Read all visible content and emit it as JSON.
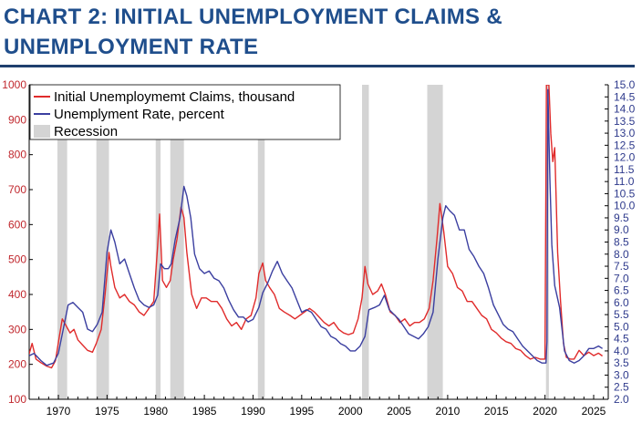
{
  "header": {
    "line1": "CHART 2: INITIAL UNEMPLOYMENT CLAIMS &",
    "line2": "UNEMPLOYMENT RATE"
  },
  "colors": {
    "claims": "#e02b2b",
    "rate": "#3b3fa0",
    "recession": "#d4d4d4",
    "title": "#1f4e8c"
  },
  "chart_data": {
    "type": "line",
    "title": "CHART 2: INITIAL UNEMPLOYMENT CLAIMS & UNEMPLOYMENT RATE",
    "xlabel": "",
    "ylabel": "",
    "xlim": [
      1967,
      2026.5
    ],
    "y_left_lim": [
      100,
      1000
    ],
    "y_right_lim": [
      2.0,
      15.0
    ],
    "x_ticks": [
      "1970",
      "1975",
      "1980",
      "1985",
      "1990",
      "1995",
      "2000",
      "2005",
      "2010",
      "2015",
      "2020",
      "2025"
    ],
    "y_left_ticks": [
      "100",
      "200",
      "300",
      "400",
      "500",
      "600",
      "700",
      "800",
      "900",
      "1000"
    ],
    "y_right_ticks": [
      "2.0",
      "2.5",
      "3.0",
      "3.5",
      "4.0",
      "4.5",
      "5.0",
      "5.5",
      "6.0",
      "6.5",
      "7.0",
      "7.5",
      "8.0",
      "8.5",
      "9.0",
      "9.5",
      "10.0",
      "10.5",
      "11.0",
      "11.5",
      "12.0",
      "12.5",
      "13.0",
      "13.5",
      "14.0",
      "14.5",
      "15.0"
    ],
    "legend": [
      {
        "label": "Initial Unemploymemt Claims, thousand",
        "kind": "line",
        "color": "#e02b2b"
      },
      {
        "label": "Unemplyment Rate, percent",
        "kind": "line",
        "color": "#3b3fa0"
      },
      {
        "label": "Recession",
        "kind": "box",
        "color": "#d4d4d4"
      }
    ],
    "legend_position": "top-left",
    "recessions": [
      [
        1969.9,
        1970.9
      ],
      [
        1973.9,
        1975.2
      ],
      [
        1980.0,
        1980.5
      ],
      [
        1981.5,
        1982.9
      ],
      [
        1990.5,
        1991.2
      ],
      [
        2001.2,
        2001.9
      ],
      [
        2007.9,
        2009.5
      ],
      [
        2020.1,
        2020.4
      ]
    ],
    "series": [
      {
        "name": "Initial Unemploymemt Claims, thousand",
        "axis": "left",
        "points": [
          [
            1967,
            230
          ],
          [
            1967.3,
            260
          ],
          [
            1967.7,
            215
          ],
          [
            1968.2,
            205
          ],
          [
            1968.8,
            195
          ],
          [
            1969.3,
            190
          ],
          [
            1969.7,
            210
          ],
          [
            1970.1,
            280
          ],
          [
            1970.4,
            330
          ],
          [
            1970.8,
            310
          ],
          [
            1971.2,
            290
          ],
          [
            1971.6,
            300
          ],
          [
            1972.0,
            270
          ],
          [
            1972.5,
            255
          ],
          [
            1973.0,
            240
          ],
          [
            1973.5,
            235
          ],
          [
            1973.9,
            260
          ],
          [
            1974.4,
            300
          ],
          [
            1974.8,
            400
          ],
          [
            1975.2,
            520
          ],
          [
            1975.4,
            480
          ],
          [
            1975.8,
            420
          ],
          [
            1976.3,
            390
          ],
          [
            1976.8,
            400
          ],
          [
            1977.3,
            380
          ],
          [
            1977.8,
            370
          ],
          [
            1978.3,
            350
          ],
          [
            1978.8,
            340
          ],
          [
            1979.3,
            360
          ],
          [
            1979.8,
            380
          ],
          [
            1980.2,
            540
          ],
          [
            1980.4,
            630
          ],
          [
            1980.7,
            440
          ],
          [
            1981.1,
            420
          ],
          [
            1981.5,
            440
          ],
          [
            1981.8,
            500
          ],
          [
            1982.2,
            560
          ],
          [
            1982.6,
            650
          ],
          [
            1982.9,
            620
          ],
          [
            1983.2,
            520
          ],
          [
            1983.7,
            400
          ],
          [
            1984.2,
            360
          ],
          [
            1984.7,
            390
          ],
          [
            1985.2,
            390
          ],
          [
            1985.7,
            380
          ],
          [
            1986.3,
            380
          ],
          [
            1986.8,
            360
          ],
          [
            1987.3,
            330
          ],
          [
            1987.8,
            310
          ],
          [
            1988.3,
            320
          ],
          [
            1988.8,
            300
          ],
          [
            1989.3,
            330
          ],
          [
            1989.8,
            340
          ],
          [
            1990.3,
            390
          ],
          [
            1990.6,
            460
          ],
          [
            1991.0,
            490
          ],
          [
            1991.3,
            440
          ],
          [
            1991.7,
            420
          ],
          [
            1992.2,
            400
          ],
          [
            1992.7,
            360
          ],
          [
            1993.2,
            350
          ],
          [
            1993.8,
            340
          ],
          [
            1994.3,
            330
          ],
          [
            1994.8,
            340
          ],
          [
            1995.3,
            350
          ],
          [
            1995.8,
            360
          ],
          [
            1996.3,
            350
          ],
          [
            1996.8,
            335
          ],
          [
            1997.3,
            320
          ],
          [
            1997.8,
            310
          ],
          [
            1998.3,
            320
          ],
          [
            1998.8,
            300
          ],
          [
            1999.3,
            290
          ],
          [
            1999.8,
            285
          ],
          [
            2000.3,
            290
          ],
          [
            2000.8,
            330
          ],
          [
            2001.2,
            390
          ],
          [
            2001.5,
            480
          ],
          [
            2001.8,
            430
          ],
          [
            2002.3,
            400
          ],
          [
            2002.8,
            410
          ],
          [
            2003.2,
            430
          ],
          [
            2003.6,
            400
          ],
          [
            2004.1,
            350
          ],
          [
            2004.6,
            340
          ],
          [
            2005.1,
            320
          ],
          [
            2005.6,
            330
          ],
          [
            2006.1,
            310
          ],
          [
            2006.6,
            320
          ],
          [
            2007.1,
            320
          ],
          [
            2007.6,
            330
          ],
          [
            2008.1,
            360
          ],
          [
            2008.5,
            440
          ],
          [
            2008.9,
            560
          ],
          [
            2009.2,
            660
          ],
          [
            2009.6,
            580
          ],
          [
            2010.0,
            480
          ],
          [
            2010.5,
            460
          ],
          [
            2011.0,
            420
          ],
          [
            2011.5,
            410
          ],
          [
            2012.0,
            380
          ],
          [
            2012.5,
            380
          ],
          [
            2013.0,
            360
          ],
          [
            2013.5,
            340
          ],
          [
            2014.0,
            330
          ],
          [
            2014.5,
            300
          ],
          [
            2015.0,
            290
          ],
          [
            2015.5,
            275
          ],
          [
            2016.0,
            265
          ],
          [
            2016.5,
            260
          ],
          [
            2017.0,
            245
          ],
          [
            2017.5,
            240
          ],
          [
            2018.0,
            225
          ],
          [
            2018.5,
            215
          ],
          [
            2019.0,
            220
          ],
          [
            2019.5,
            215
          ],
          [
            2020.0,
            215
          ],
          [
            2020.15,
            1000
          ],
          [
            2020.4,
            1000
          ],
          [
            2020.6,
            860
          ],
          [
            2020.8,
            780
          ],
          [
            2021.0,
            820
          ],
          [
            2021.3,
            520
          ],
          [
            2021.6,
            380
          ],
          [
            2021.9,
            260
          ],
          [
            2022.2,
            220
          ],
          [
            2022.6,
            215
          ],
          [
            2023.0,
            215
          ],
          [
            2023.5,
            240
          ],
          [
            2024.0,
            225
          ],
          [
            2024.5,
            235
          ],
          [
            2025.0,
            225
          ],
          [
            2025.5,
            232
          ],
          [
            2025.9,
            224
          ]
        ]
      },
      {
        "name": "Unemplyment Rate, percent",
        "axis": "right",
        "points": [
          [
            1967,
            3.8
          ],
          [
            1967.5,
            3.9
          ],
          [
            1968.2,
            3.6
          ],
          [
            1968.8,
            3.4
          ],
          [
            1969.5,
            3.5
          ],
          [
            1970.0,
            3.9
          ],
          [
            1970.5,
            4.9
          ],
          [
            1971.0,
            5.9
          ],
          [
            1971.5,
            6.0
          ],
          [
            1972.0,
            5.8
          ],
          [
            1972.5,
            5.6
          ],
          [
            1973.0,
            4.9
          ],
          [
            1973.5,
            4.8
          ],
          [
            1974.0,
            5.1
          ],
          [
            1974.5,
            5.6
          ],
          [
            1975.0,
            8.1
          ],
          [
            1975.4,
            9.0
          ],
          [
            1975.8,
            8.5
          ],
          [
            1976.3,
            7.6
          ],
          [
            1976.8,
            7.8
          ],
          [
            1977.3,
            7.2
          ],
          [
            1977.8,
            6.6
          ],
          [
            1978.3,
            6.1
          ],
          [
            1978.8,
            5.9
          ],
          [
            1979.3,
            5.8
          ],
          [
            1979.8,
            5.9
          ],
          [
            1980.2,
            6.3
          ],
          [
            1980.5,
            7.6
          ],
          [
            1980.9,
            7.4
          ],
          [
            1981.3,
            7.4
          ],
          [
            1981.6,
            7.6
          ],
          [
            1982.0,
            8.6
          ],
          [
            1982.5,
            9.5
          ],
          [
            1982.9,
            10.8
          ],
          [
            1983.2,
            10.4
          ],
          [
            1983.6,
            9.5
          ],
          [
            1984.0,
            8.0
          ],
          [
            1984.5,
            7.4
          ],
          [
            1985.0,
            7.2
          ],
          [
            1985.5,
            7.3
          ],
          [
            1986.0,
            7.0
          ],
          [
            1986.5,
            6.9
          ],
          [
            1987.0,
            6.6
          ],
          [
            1987.5,
            6.1
          ],
          [
            1988.0,
            5.7
          ],
          [
            1988.5,
            5.4
          ],
          [
            1989.0,
            5.4
          ],
          [
            1989.5,
            5.2
          ],
          [
            1990.0,
            5.3
          ],
          [
            1990.6,
            5.8
          ],
          [
            1991.0,
            6.4
          ],
          [
            1991.5,
            6.8
          ],
          [
            1992.0,
            7.3
          ],
          [
            1992.5,
            7.7
          ],
          [
            1993.0,
            7.2
          ],
          [
            1993.5,
            6.9
          ],
          [
            1994.0,
            6.6
          ],
          [
            1994.5,
            6.1
          ],
          [
            1995.0,
            5.6
          ],
          [
            1995.5,
            5.7
          ],
          [
            1996.0,
            5.6
          ],
          [
            1996.5,
            5.3
          ],
          [
            1997.0,
            5.0
          ],
          [
            1997.5,
            4.9
          ],
          [
            1998.0,
            4.6
          ],
          [
            1998.5,
            4.5
          ],
          [
            1999.0,
            4.3
          ],
          [
            1999.5,
            4.2
          ],
          [
            2000.0,
            4.0
          ],
          [
            2000.5,
            4.0
          ],
          [
            2001.0,
            4.2
          ],
          [
            2001.5,
            4.6
          ],
          [
            2001.9,
            5.7
          ],
          [
            2002.5,
            5.8
          ],
          [
            2003.0,
            5.9
          ],
          [
            2003.5,
            6.3
          ],
          [
            2004.0,
            5.7
          ],
          [
            2004.5,
            5.5
          ],
          [
            2005.0,
            5.3
          ],
          [
            2005.5,
            5.0
          ],
          [
            2006.0,
            4.7
          ],
          [
            2006.5,
            4.6
          ],
          [
            2007.0,
            4.5
          ],
          [
            2007.5,
            4.7
          ],
          [
            2008.0,
            5.0
          ],
          [
            2008.5,
            5.6
          ],
          [
            2009.0,
            7.8
          ],
          [
            2009.5,
            9.5
          ],
          [
            2009.8,
            10.0
          ],
          [
            2010.2,
            9.8
          ],
          [
            2010.7,
            9.6
          ],
          [
            2011.2,
            9.0
          ],
          [
            2011.7,
            9.0
          ],
          [
            2012.2,
            8.2
          ],
          [
            2012.7,
            7.9
          ],
          [
            2013.2,
            7.5
          ],
          [
            2013.7,
            7.2
          ],
          [
            2014.2,
            6.6
          ],
          [
            2014.7,
            5.9
          ],
          [
            2015.2,
            5.5
          ],
          [
            2015.7,
            5.1
          ],
          [
            2016.2,
            4.9
          ],
          [
            2016.7,
            4.8
          ],
          [
            2017.2,
            4.5
          ],
          [
            2017.7,
            4.2
          ],
          [
            2018.2,
            4.0
          ],
          [
            2018.7,
            3.8
          ],
          [
            2019.2,
            3.6
          ],
          [
            2019.7,
            3.5
          ],
          [
            2020.1,
            3.5
          ],
          [
            2020.2,
            4.4
          ],
          [
            2020.3,
            14.8
          ],
          [
            2020.5,
            11.1
          ],
          [
            2020.7,
            8.4
          ],
          [
            2021.0,
            6.7
          ],
          [
            2021.5,
            5.8
          ],
          [
            2022.0,
            4.0
          ],
          [
            2022.5,
            3.6
          ],
          [
            2023.0,
            3.5
          ],
          [
            2023.5,
            3.6
          ],
          [
            2024.0,
            3.8
          ],
          [
            2024.5,
            4.1
          ],
          [
            2025.0,
            4.1
          ],
          [
            2025.5,
            4.2
          ],
          [
            2025.9,
            4.1
          ]
        ]
      }
    ]
  }
}
